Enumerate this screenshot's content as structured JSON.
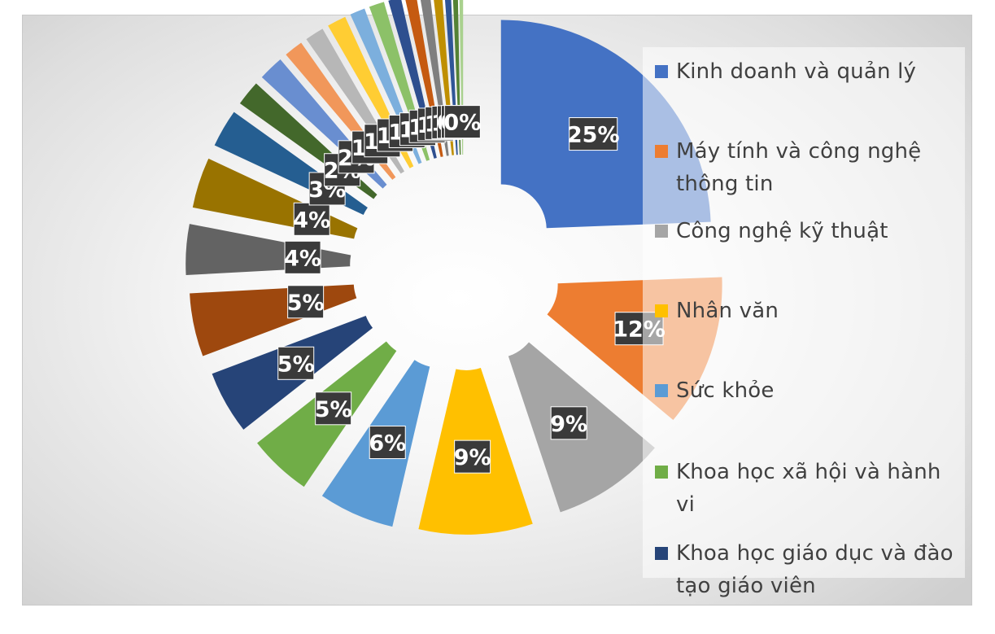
{
  "chart_data": {
    "type": "pie",
    "style": "exploded pie with dark percentage data labels; small slices stack labels near center",
    "legend_position": "right",
    "slices": [
      {
        "label": "Kinh doanh và quản lý",
        "value": 25,
        "value_label": "25%",
        "color": "#4472C4"
      },
      {
        "label": "Máy tính và công nghệ thông tin",
        "value": 12,
        "value_label": "12%",
        "color": "#ED7D31"
      },
      {
        "label": "Công nghệ kỹ thuật",
        "value": 9,
        "value_label": "9%",
        "color": "#A5A5A5"
      },
      {
        "label": "Nhân văn",
        "value": 9,
        "value_label": "9%",
        "color": "#FFC000"
      },
      {
        "label": "Sức khỏe",
        "value": 6,
        "value_label": "6%",
        "color": "#5B9BD5"
      },
      {
        "label": "Khoa học xã hội và hành vi",
        "value": 5,
        "value_label": "5%",
        "color": "#70AD47"
      },
      {
        "label": "Khoa học giáo dục và đào tạo giáo viên",
        "value": 5,
        "value_label": "5%",
        "color": "#264478"
      },
      {
        "label": "",
        "value": 5,
        "value_label": "5%",
        "color": "#9E480E"
      },
      {
        "label": "",
        "value": 4,
        "value_label": "4%",
        "color": "#636363"
      },
      {
        "label": "",
        "value": 4,
        "value_label": "4%",
        "color": "#997300"
      },
      {
        "label": "",
        "value": 3,
        "value_label": "3%",
        "color": "#255E91"
      },
      {
        "label": "",
        "value": 2,
        "value_label": "2%",
        "color": "#43682B"
      },
      {
        "label": "",
        "value": 2,
        "value_label": "2%",
        "color": "#698ED0"
      },
      {
        "label": "",
        "value": 1.5,
        "value_label": "1%",
        "color": "#F1975A"
      },
      {
        "label": "",
        "value": 1.5,
        "value_label": "1%",
        "color": "#B7B7B7"
      },
      {
        "label": "",
        "value": 1.5,
        "value_label": "1%",
        "color": "#FFCD33"
      },
      {
        "label": "",
        "value": 1.2,
        "value_label": "1%",
        "color": "#7CAFDD"
      },
      {
        "label": "",
        "value": 1.2,
        "value_label": "1%",
        "color": "#8CC168"
      },
      {
        "label": "",
        "value": 1.0,
        "value_label": "1%",
        "color": "#2E4F8F"
      },
      {
        "label": "",
        "value": 0.9,
        "value_label": "1%",
        "color": "#C55A11"
      },
      {
        "label": "",
        "value": 0.8,
        "value_label": "1%",
        "color": "#7F7F7F"
      },
      {
        "label": "",
        "value": 0.7,
        "value_label": "1%",
        "color": "#BF8F00"
      },
      {
        "label": "",
        "value": 0.5,
        "value_label": "0%",
        "color": "#2F5597"
      },
      {
        "label": "",
        "value": 0.4,
        "value_label": "0%",
        "color": "#548235"
      },
      {
        "label": "",
        "value": 0.3,
        "value_label": "0%",
        "color": "#A9D18E"
      }
    ]
  }
}
